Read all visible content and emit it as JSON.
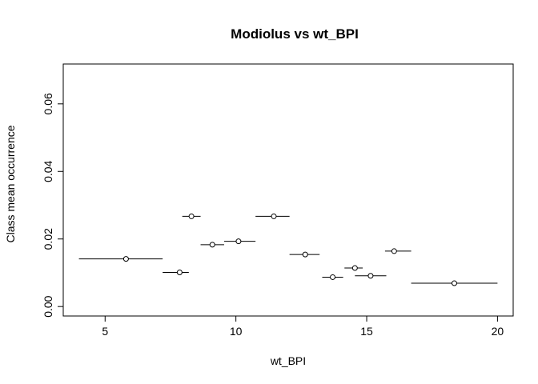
{
  "chart_data": {
    "type": "scatter",
    "title": "Modiolus vs wt_BPI",
    "xlabel": "wt_BPI",
    "ylabel": "Class mean occurrence",
    "xlim": [
      3.4,
      20.6
    ],
    "ylim": [
      -0.0028,
      0.0718
    ],
    "x_ticks": [
      5,
      10,
      15,
      20
    ],
    "y_ticks": [
      0.0,
      0.02,
      0.04,
      0.06
    ],
    "y_tick_labels": [
      "0.00",
      "0.02",
      "0.04",
      "0.06"
    ],
    "grid": false,
    "legend": "none",
    "points": [
      {
        "x": 5.8,
        "y": 0.0141,
        "x_min": 4.0,
        "x_max": 7.2
      },
      {
        "x": 7.85,
        "y": 0.0101,
        "x_min": 7.2,
        "x_max": 8.2
      },
      {
        "x": 8.3,
        "y": 0.0267,
        "x_min": 7.95,
        "x_max": 8.65
      },
      {
        "x": 9.1,
        "y": 0.0183,
        "x_min": 8.65,
        "x_max": 9.55
      },
      {
        "x": 10.1,
        "y": 0.0193,
        "x_min": 9.55,
        "x_max": 10.75
      },
      {
        "x": 11.45,
        "y": 0.0267,
        "x_min": 10.75,
        "x_max": 12.05
      },
      {
        "x": 12.65,
        "y": 0.0154,
        "x_min": 12.05,
        "x_max": 13.2
      },
      {
        "x": 13.7,
        "y": 0.0087,
        "x_min": 13.3,
        "x_max": 14.1
      },
      {
        "x": 14.55,
        "y": 0.0114,
        "x_min": 14.15,
        "x_max": 14.85
      },
      {
        "x": 15.15,
        "y": 0.0091,
        "x_min": 14.55,
        "x_max": 15.75
      },
      {
        "x": 16.05,
        "y": 0.0164,
        "x_min": 15.7,
        "x_max": 16.7
      },
      {
        "x": 18.35,
        "y": 0.0069,
        "x_min": 16.7,
        "x_max": 20.0
      }
    ]
  }
}
